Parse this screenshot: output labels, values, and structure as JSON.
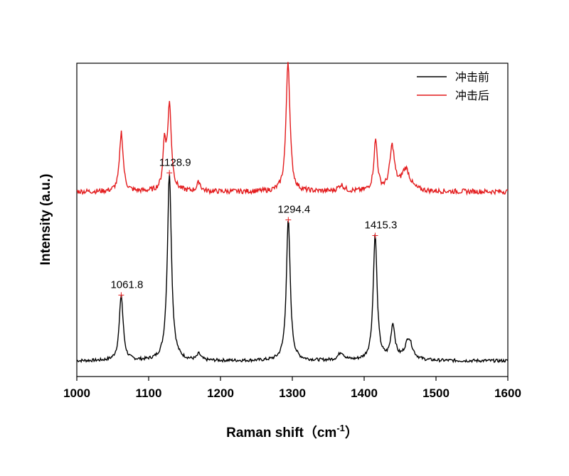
{
  "chart_data": {
    "type": "line",
    "xlabel": "Raman shift（cm",
    "xlabel_sup": "-1",
    "xlabel_close": "）",
    "ylabel": "Intensity (a.u.)",
    "xlim": [
      1000,
      1600
    ],
    "x_ticks": [
      1000,
      1100,
      1200,
      1300,
      1400,
      1500,
      1600
    ],
    "x_tick_labels": [
      "1000",
      "1100",
      "1200",
      "1300",
      "1400",
      "1500",
      "1600"
    ],
    "ylim": [
      0,
      100
    ],
    "y_ticks_shown": false,
    "grid": false,
    "legend_position": "top-right",
    "series": [
      {
        "name": "冲击前",
        "color": "#000000",
        "baseline": 5,
        "noise": 0.5,
        "peaks": [
          {
            "x": 1061.8,
            "height": 21,
            "width": 3.2
          },
          {
            "x": 1128.9,
            "height": 60,
            "width": 3.4
          },
          {
            "x": 1170,
            "height": 2,
            "width": 3
          },
          {
            "x": 1294.4,
            "height": 45,
            "width": 3.2
          },
          {
            "x": 1368,
            "height": 2.5,
            "width": 5
          },
          {
            "x": 1415.3,
            "height": 40,
            "width": 3.2
          },
          {
            "x": 1440,
            "height": 11,
            "width": 3.5
          },
          {
            "x": 1462,
            "height": 7,
            "width": 6
          }
        ]
      },
      {
        "name": "冲击后",
        "color": "#e31a1c",
        "baseline": 59,
        "noise": 0.8,
        "peaks": [
          {
            "x": 1062,
            "height": 19,
            "width": 3
          },
          {
            "x": 1122,
            "height": 14,
            "width": 2.5
          },
          {
            "x": 1129,
            "height": 27,
            "width": 3.2
          },
          {
            "x": 1170,
            "height": 3,
            "width": 3
          },
          {
            "x": 1294,
            "height": 42,
            "width": 3.2
          },
          {
            "x": 1368,
            "height": 2,
            "width": 5
          },
          {
            "x": 1416,
            "height": 16,
            "width": 3
          },
          {
            "x": 1439,
            "height": 14,
            "width": 4
          },
          {
            "x": 1458,
            "height": 7,
            "width": 7
          }
        ]
      }
    ],
    "annotations": [
      {
        "x": 1061.8,
        "y": 26,
        "label": "1061.8",
        "series": 0
      },
      {
        "x": 1128.9,
        "y": 65,
        "label": "1128.9",
        "series": 0
      },
      {
        "x": 1294.4,
        "y": 50,
        "label": "1294.4",
        "series": 0
      },
      {
        "x": 1415.3,
        "y": 45,
        "label": "1415.3",
        "series": 0
      }
    ]
  }
}
